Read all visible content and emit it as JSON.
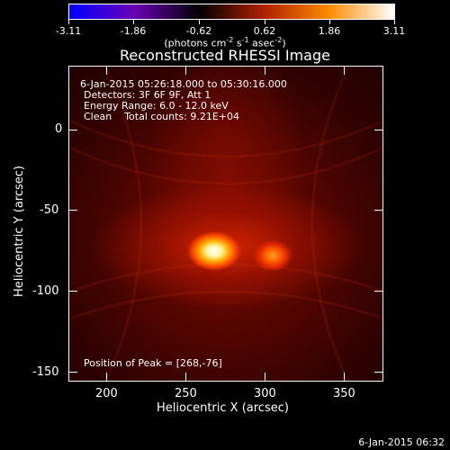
{
  "colorbar": {
    "tick_labels": [
      "-3.11",
      "-1.86",
      "-0.62",
      "0.62",
      "1.86",
      "3.11"
    ],
    "units_text": "(photons cm",
    "units_exp1": "-2",
    "units_mid": " s",
    "units_exp2": "-1",
    "units_mid2": " asec",
    "units_exp3": "-2",
    "units_end": ")",
    "colors": [
      "#0000ff",
      "#6a00b4",
      "#000000",
      "#b02000",
      "#ff8c00",
      "#ffffff"
    ]
  },
  "title": "Reconstructed RHESSI Image",
  "info": {
    "time_range": "6-Jan-2015 05:26:18.000 to 05:30:16.000",
    "detectors": "Detectors: 3F 6F 9F, Att 1",
    "energy": "Energy Range: 6.0 - 12.0 keV",
    "clean": "Clean    Total counts: 9.21E+04",
    "peak": "Position of Peak = [268,-76]"
  },
  "axes": {
    "xlabel": "Heliocentric X (arcsec)",
    "ylabel": "Heliocentric Y (arcsec)",
    "x_ticks": [
      "200",
      "250",
      "300",
      "350"
    ],
    "y_ticks": [
      "0",
      "-50",
      "-100",
      "-150"
    ]
  },
  "footer": {
    "timestamp": "6-Jan-2015 06:32"
  }
}
